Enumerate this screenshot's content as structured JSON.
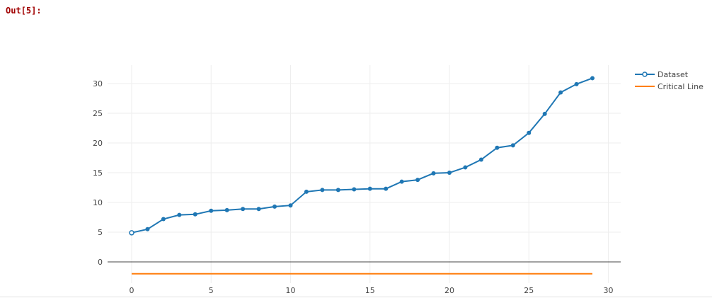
{
  "cell": {
    "prompt": "Out[5]:"
  },
  "chart_data": {
    "type": "line",
    "title": "",
    "xlabel": "",
    "ylabel": "",
    "xlim": [
      -1.5,
      31.5
    ],
    "ylim": [
      -3.5,
      33
    ],
    "x_ticks": [
      0,
      5,
      10,
      15,
      20,
      25,
      30
    ],
    "y_ticks": [
      0,
      5,
      10,
      15,
      20,
      25,
      30
    ],
    "grid": true,
    "legend_position": "top-right",
    "series": [
      {
        "name": "Dataset",
        "style": "lines+markers",
        "color": "#1f77b4",
        "x": [
          0,
          1,
          2,
          3,
          4,
          5,
          6,
          7,
          8,
          9,
          10,
          11,
          12,
          13,
          14,
          15,
          16,
          17,
          18,
          19,
          20,
          21,
          22,
          23,
          24,
          25,
          26,
          27,
          28,
          29
        ],
        "y": [
          4.9,
          5.5,
          7.2,
          7.9,
          8.0,
          8.6,
          8.7,
          8.9,
          8.9,
          9.3,
          9.5,
          11.8,
          12.1,
          12.1,
          12.2,
          12.3,
          12.3,
          13.5,
          13.8,
          14.9,
          15.0,
          15.9,
          17.2,
          19.2,
          19.6,
          21.7,
          24.9,
          28.5,
          29.9,
          30.9
        ]
      },
      {
        "name": "Critical Line",
        "style": "lines",
        "color": "#ff7f0e",
        "x": [
          0,
          29
        ],
        "y": [
          -2,
          -2
        ]
      }
    ]
  }
}
